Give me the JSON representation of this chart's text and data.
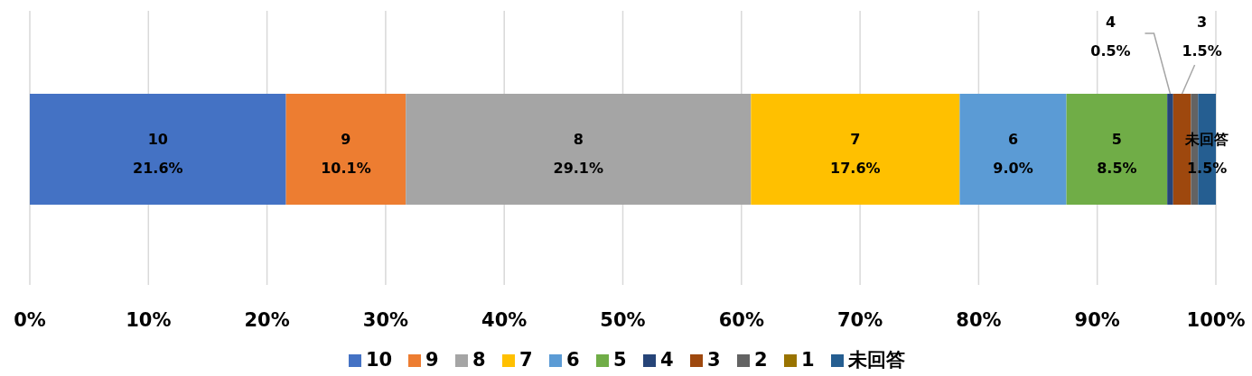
{
  "chart_data": {
    "type": "bar",
    "orientation": "horizontal",
    "stacked": true,
    "categories": [
      null
    ],
    "series": [
      {
        "name": "10",
        "color": "#4472c4",
        "values": [
          21.6
        ],
        "value_labels": [
          "21.6%"
        ]
      },
      {
        "name": "9",
        "color": "#ed7d31",
        "values": [
          10.1
        ],
        "value_labels": [
          "10.1%"
        ]
      },
      {
        "name": "8",
        "color": "#a5a5a5",
        "values": [
          29.1
        ],
        "value_labels": [
          "29.1%"
        ]
      },
      {
        "name": "7",
        "color": "#ffc000",
        "values": [
          17.6
        ],
        "value_labels": [
          "17.6%"
        ]
      },
      {
        "name": "6",
        "color": "#5b9bd5",
        "values": [
          9.0
        ],
        "value_labels": [
          "9.0%"
        ]
      },
      {
        "name": "5",
        "color": "#70ad47",
        "values": [
          8.5
        ],
        "value_labels": [
          "8.5%"
        ]
      },
      {
        "name": "4",
        "color": "#264478",
        "values": [
          0.5
        ],
        "value_labels": [
          "0.5%"
        ]
      },
      {
        "name": "3",
        "color": "#9e480e",
        "values": [
          1.5
        ],
        "value_labels": [
          "1.5%"
        ]
      },
      {
        "name": "2",
        "color": "#636363",
        "values": [
          0.6
        ],
        "value_labels": [
          null
        ]
      },
      {
        "name": "1",
        "color": "#997300",
        "values": [
          0
        ],
        "value_labels": [
          null
        ]
      },
      {
        "name": "未回答",
        "color": "#255e91",
        "values": [
          1.5
        ],
        "value_labels": [
          "1.5%"
        ]
      }
    ],
    "xlim": [
      0,
      100
    ],
    "xticks": [
      {
        "value": 0,
        "label": "0%"
      },
      {
        "value": 10,
        "label": "10%"
      },
      {
        "value": 20,
        "label": "20%"
      },
      {
        "value": 30,
        "label": "30%"
      },
      {
        "value": 40,
        "label": "40%"
      },
      {
        "value": 50,
        "label": "50%"
      },
      {
        "value": 60,
        "label": "60%"
      },
      {
        "value": 70,
        "label": "70%"
      },
      {
        "value": 80,
        "label": "80%"
      },
      {
        "value": 90,
        "label": "90%"
      },
      {
        "value": 100,
        "label": "100%"
      }
    ],
    "grid": "x",
    "legend": "bottom"
  }
}
